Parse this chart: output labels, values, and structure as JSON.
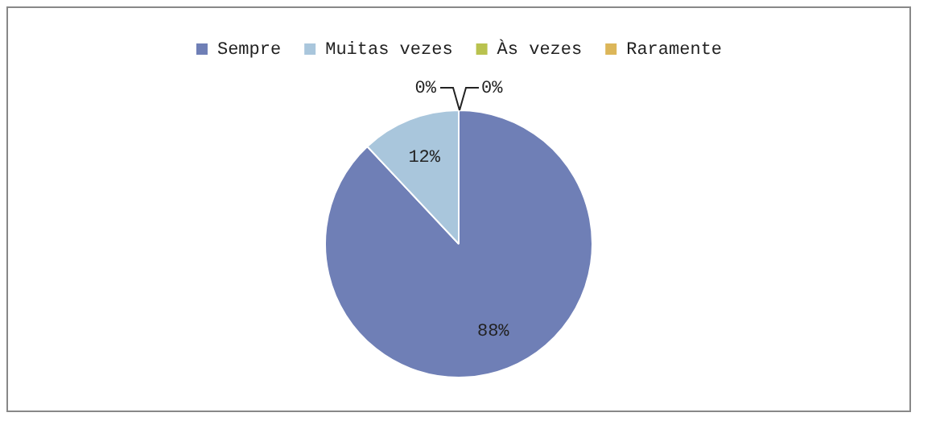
{
  "chart_data": {
    "type": "pie",
    "categories": [
      "Sempre",
      "Muitas vezes",
      "Às vezes",
      "Raramente"
    ],
    "values": [
      88,
      12,
      0,
      0
    ],
    "colors": [
      "#6f7fb6",
      "#a9c6dc",
      "#b9c24f",
      "#dcb659"
    ],
    "value_labels": [
      "88%",
      "12%",
      "0%",
      "0%"
    ],
    "legend": "top"
  }
}
